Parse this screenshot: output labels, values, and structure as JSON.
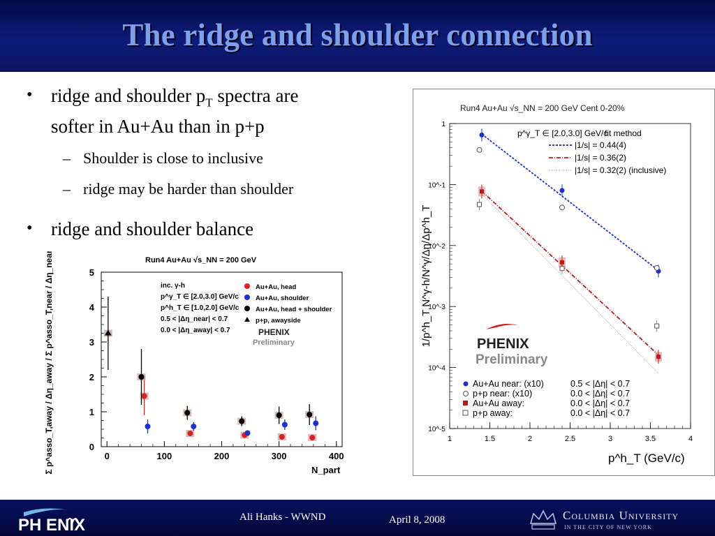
{
  "slide": {
    "title": "The ridge and shoulder connection",
    "bullets": [
      {
        "line1_pre": "ridge and shoulder p",
        "line1_sub": "T",
        "line1_post": " spectra are",
        "line2": "softer in Au+Au than in p+p",
        "subs": [
          "Shoulder is close to inclusive",
          "ridge may be harder than shoulder"
        ]
      },
      {
        "text": "ridge and shoulder balance"
      }
    ],
    "bullet_glyph": "•",
    "dash_glyph": "–"
  },
  "footer": {
    "author": "Ali Hanks - WWND",
    "date": "April 8, 2008",
    "phenix_logo_text": "PH ENIX",
    "columbia_line1": "Columbia University",
    "columbia_line2": "IN THE CITY OF NEW YORK"
  },
  "colors": {
    "header_bg": "#0d1c7a",
    "title": "#7f9fe8",
    "blue_series": "#1a2fd6",
    "red_series": "#e02020",
    "dark_red_series": "#c01818",
    "black_series": "#000000",
    "sys_box": "#c7a6a0"
  },
  "chart_data": [
    {
      "type": "scatter",
      "title": "Run4 Au+Au √s_NN = 200 GeV",
      "xlabel": "N_part",
      "ylabel": "Σ p^asso_T,away / Δη_away  /  Σ p^asso_T,near / Δη_near",
      "xlim": [
        -10,
        410
      ],
      "ylim": [
        0,
        5
      ],
      "xticks": [
        "0",
        "100",
        "200",
        "300",
        "400"
      ],
      "yticks": [
        "0",
        "1",
        "2",
        "3",
        "4",
        "5"
      ],
      "annotations": [
        "inc. γ-h",
        "p^γ_T ∈ [2.0,3.0] GeV/c",
        "p^h_T ∈ [1.0,2.0] GeV/c",
        "0.5 < |Δη_near| < 0.7",
        "0.0 < |Δη_away| < 0.7"
      ],
      "watermark": "PHENIX Preliminary",
      "legend": {
        "position": "top-right",
        "entries": [
          "Au+Au, head",
          "Au+Au, shoulder",
          "Au+Au, head + shoulder",
          "p+p, awayside"
        ]
      },
      "series": [
        {
          "name": "Au+Au, head",
          "marker": "circle",
          "color": "#e02020",
          "points": [
            {
              "x": 65,
              "y": 1.45,
              "err": 0.55
            },
            {
              "x": 145,
              "y": 0.38,
              "err": 0.06
            },
            {
              "x": 240,
              "y": 0.33,
              "err": 0.05
            },
            {
              "x": 305,
              "y": 0.28,
              "err": 0.08
            },
            {
              "x": 358,
              "y": 0.26,
              "err": 0.08
            }
          ]
        },
        {
          "name": "Au+Au, shoulder",
          "marker": "circle",
          "color": "#1a2fd6",
          "points": [
            {
              "x": 71,
              "y": 0.58,
              "err": 0.2
            },
            {
              "x": 151,
              "y": 0.58,
              "err": 0.12
            },
            {
              "x": 245,
              "y": 0.39,
              "err": 0.07
            },
            {
              "x": 310,
              "y": 0.63,
              "err": 0.15
            },
            {
              "x": 364,
              "y": 0.67,
              "err": 0.2
            }
          ]
        },
        {
          "name": "Au+Au, head + shoulder",
          "marker": "circle",
          "color": "#000000",
          "points": [
            {
              "x": 60,
              "y": 2.0,
              "err": 0.8
            },
            {
              "x": 140,
              "y": 0.97,
              "err": 0.2
            },
            {
              "x": 235,
              "y": 0.73,
              "err": 0.14
            },
            {
              "x": 300,
              "y": 0.9,
              "err": 0.25
            },
            {
              "x": 353,
              "y": 0.92,
              "err": 0.3
            }
          ]
        },
        {
          "name": "p+p, awayside",
          "marker": "triangle",
          "color": "#000000",
          "points": [
            {
              "x": 2,
              "y": 3.25,
              "err": 1.05
            }
          ]
        }
      ]
    },
    {
      "type": "scatter",
      "title": "Run4 Au+Au √s_NN = 200 GeV Cent 0-20%",
      "xlabel": "p^h_T (GeV/c)",
      "ylabel": "1/p^h_T N^γ-h/N^γ/Δη/Δp^h_T",
      "xlim": [
        1,
        4
      ],
      "ylim": [
        1e-05,
        1
      ],
      "yscale": "log",
      "xticks": [
        "1",
        "1.5",
        "2",
        "2.5",
        "3",
        "3.5",
        "4"
      ],
      "yticks": [
        "10^-5",
        "10^-4",
        "10^-3",
        "10^-2",
        "10^-1",
        "1"
      ],
      "annotations": [
        "p^γ_T ∈ [2.0,3.0] GeV/c",
        "fit method"
      ],
      "watermark": "PHENIX Preliminary",
      "fit_legend": [
        {
          "label": "|1/s| = 0.44(4)",
          "style": "dotted",
          "color": "#1a2fd6"
        },
        {
          "label": "|1/s| = 0.36(2)",
          "style": "dashdot",
          "color": "#c01818"
        },
        {
          "label": "|1/s| = 0.32(2) (inclusive)",
          "style": "dotted-thin",
          "color": "#999999"
        }
      ],
      "legend": {
        "position": "bottom-left",
        "entries": [
          {
            "name": "Au+Au near: (x10)",
            "cut": "0.5 < |Δη| < 0.7"
          },
          {
            "name": "p+p near: (x10)",
            "cut": "0.0 < |Δη| < 0.7"
          },
          {
            "name": "Au+Au away:",
            "cut": "0.0 < |Δη| < 0.7"
          },
          {
            "name": "p+p away:",
            "cut": "0.0 < |Δη| < 0.7"
          }
        ]
      },
      "series": [
        {
          "name": "Au+Au near: (x10)",
          "marker": "circle-filled",
          "color": "#1a2fd6",
          "points": [
            {
              "x": 1.4,
              "y": 0.65
            },
            {
              "x": 2.4,
              "y": 0.08
            },
            {
              "x": 3.6,
              "y": 0.0038
            }
          ]
        },
        {
          "name": "p+p near: (x10)",
          "marker": "circle-open",
          "color": "#555555",
          "points": [
            {
              "x": 1.37,
              "y": 0.37
            },
            {
              "x": 2.4,
              "y": 0.042
            },
            {
              "x": 3.58,
              "y": 0.0043
            }
          ]
        },
        {
          "name": "Au+Au away:",
          "marker": "square-filled",
          "color": "#c01818",
          "points": [
            {
              "x": 1.4,
              "y": 0.077
            },
            {
              "x": 2.4,
              "y": 0.0053
            },
            {
              "x": 3.6,
              "y": 0.00015
            }
          ]
        },
        {
          "name": "p+p away:",
          "marker": "square-open",
          "color": "#555555",
          "points": [
            {
              "x": 1.37,
              "y": 0.047
            },
            {
              "x": 2.4,
              "y": 0.0042
            },
            {
              "x": 3.58,
              "y": 0.00048
            }
          ]
        }
      ],
      "fits": [
        {
          "label": "|1/s| = 0.44(4)",
          "from": [
            1.4,
            0.67
          ],
          "to": [
            3.6,
            0.0039
          ]
        },
        {
          "label": "|1/s| = 0.36(2)",
          "from": [
            1.4,
            0.078
          ],
          "to": [
            3.6,
            0.00016
          ]
        },
        {
          "label": "|1/s| = 0.32(2) (inclusive)",
          "from": [
            1.4,
            0.07
          ],
          "to": [
            3.6,
            8e-05
          ]
        }
      ]
    }
  ]
}
